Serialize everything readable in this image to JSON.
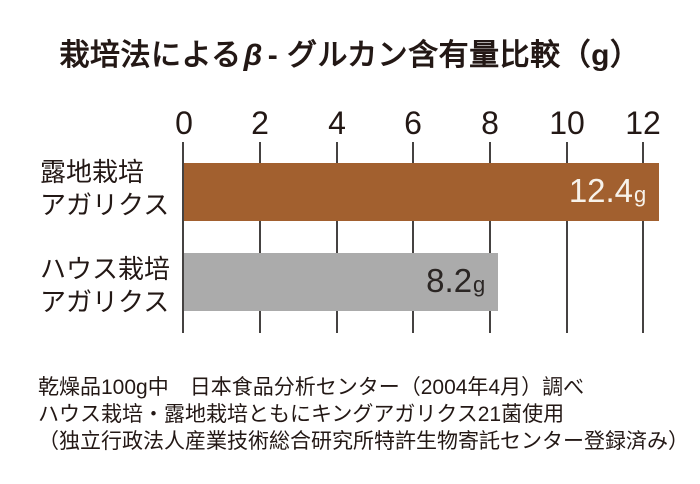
{
  "title": {
    "full": "栽培法によるβ- グルカン含有量比較（g）",
    "prefix": "栽培法による",
    "beta": "β",
    "suffix": "- グルカン含有量比較（g）"
  },
  "chart_data": {
    "type": "bar",
    "orientation": "horizontal",
    "title": "栽培法によるβ- グルカン含有量比較（g）",
    "categories": [
      "露地栽培アガリクス",
      "ハウス栽培アガリクス"
    ],
    "category_lines": [
      {
        "line1": "露地栽培",
        "line2": "アガリクス"
      },
      {
        "line1": "ハウス栽培",
        "line2": "アガリクス"
      }
    ],
    "values": [
      12.4,
      8.2
    ],
    "value_labels": [
      "12.4",
      "8.2"
    ],
    "unit": "g",
    "ticks": [
      "0",
      "2",
      "4",
      "6",
      "8",
      "10",
      "12"
    ],
    "xlim": [
      0,
      12
    ],
    "grid": true,
    "bar_colors": [
      "#a2602f",
      "#ababab"
    ],
    "value_label_colors": [
      "#f7f2ea",
      "#2b2624"
    ]
  },
  "footer": {
    "lines": [
      "乾燥品100g中　日本食品分析センター（2004年4月）調べ",
      "ハウス栽培・露地栽培ともにキングアガリクス21菌使用",
      "（独立行政法人産業技術総合研究所特許生物寄託センター登録済み）"
    ]
  },
  "colors": {
    "background": "#ffffff",
    "text": "#231815",
    "gridline": "#454241",
    "bar_outdoor": "#a2602f",
    "bar_house": "#ababab"
  }
}
